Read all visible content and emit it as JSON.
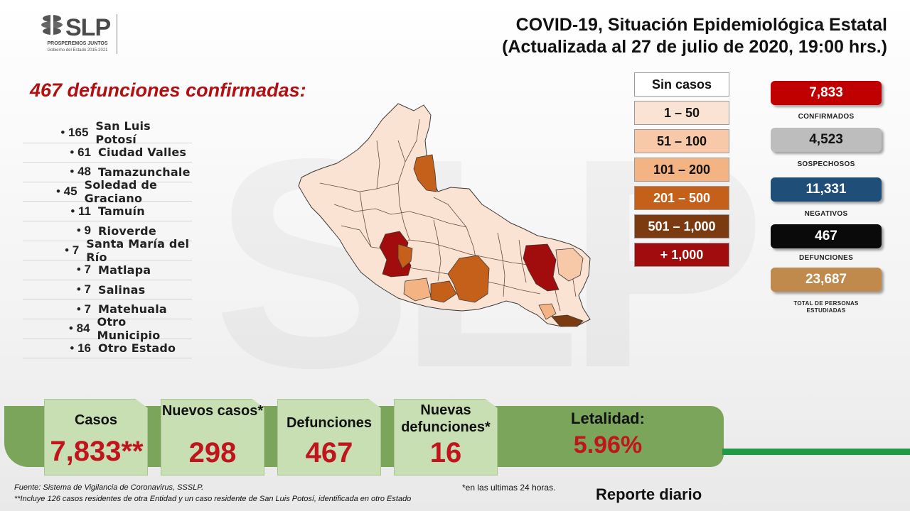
{
  "logo": {
    "text": "SLP",
    "tagline": "PROSPEREMOS JUNTOS",
    "subtagline": "Gobierno del Estado 2015-2021"
  },
  "title": {
    "line1": "COVID-19, Situación Epidemiológica Estatal",
    "line2": "(Actualizada al 27 de julio de 2020, 19:00 hrs.)"
  },
  "headline": "467 defunciones confirmadas:",
  "deaths_by_municipality": [
    {
      "count": "165",
      "name": "San Luis Potosí"
    },
    {
      "count": "61",
      "name": "Ciudad Valles"
    },
    {
      "count": "48",
      "name": "Tamazunchale"
    },
    {
      "count": "45",
      "name": "Soledad de Graciano"
    },
    {
      "count": "11",
      "name": "Tamuín"
    },
    {
      "count": "9",
      "name": "Rioverde"
    },
    {
      "count": "7",
      "name": "Santa María del Río"
    },
    {
      "count": "7",
      "name": "Matlapa"
    },
    {
      "count": "7",
      "name": "Salinas"
    },
    {
      "count": "7",
      "name": "Matehuala"
    },
    {
      "count": "84",
      "name": "Otro Municipio"
    },
    {
      "count": "16",
      "name": "Otro Estado"
    }
  ],
  "legend": [
    {
      "label": "Sin casos",
      "color": "#ffffff",
      "text_color": "#111111"
    },
    {
      "label": "1 – 50",
      "color": "#fbe3d3",
      "text_color": "#111111"
    },
    {
      "label": "51 – 100",
      "color": "#f7c9a8",
      "text_color": "#111111"
    },
    {
      "label": "101 – 200",
      "color": "#f4b383",
      "text_color": "#111111"
    },
    {
      "label": "201 – 500",
      "color": "#c5601a",
      "text_color": "#ffffff"
    },
    {
      "label": "501 – 1,000",
      "color": "#7b3a10",
      "text_color": "#ffffff"
    },
    {
      "label": "+ 1,000",
      "color": "#a10d0d",
      "text_color": "#ffffff"
    }
  ],
  "stats": [
    {
      "value": "7,833",
      "label": "CONFIRMADOS",
      "color": "#c00000",
      "text_color": "#ffffff"
    },
    {
      "value": "4,523",
      "label": "SOSPECHOSOS",
      "color": "#bdbdbd",
      "text_color": "#111111"
    },
    {
      "value": "11,331",
      "label": "NEGATIVOS",
      "color": "#1f4e79",
      "text_color": "#ffffff"
    },
    {
      "value": "467",
      "label": "DEFUNCIONES",
      "color": "#0a0a0a",
      "text_color": "#ffffff"
    },
    {
      "value": "23,687",
      "label": "TOTAL DE PERSONAS ESTUDIADAS",
      "color": "#c08a4c",
      "text_color": "#ffffff"
    }
  ],
  "summary": {
    "cases_label": "Casos",
    "cases_value": "7,833**",
    "new_cases_label": "Nuevos casos*",
    "new_cases_value": "298",
    "deaths_label": "Defunciones",
    "deaths_value": "467",
    "new_deaths_label": "Nuevas defunciones*",
    "new_deaths_value": "16",
    "lethality_label": "Letalidad:",
    "lethality_value": "5.96%"
  },
  "footer": {
    "source": "Fuente: Sistema de Vigilancia  de Coronavirus, SSSLP.",
    "note": "**Incluye 126 casos residentes de otra Entidad  y un caso residente de San Luis Potosí, identificada  en otro Estado",
    "last24": "*en las ultimas 24 horas.",
    "report": "Reporte diario"
  },
  "colors": {
    "band": "#7aa55a",
    "value_red": "#c0151c",
    "accent_green": "#1f9a45"
  }
}
